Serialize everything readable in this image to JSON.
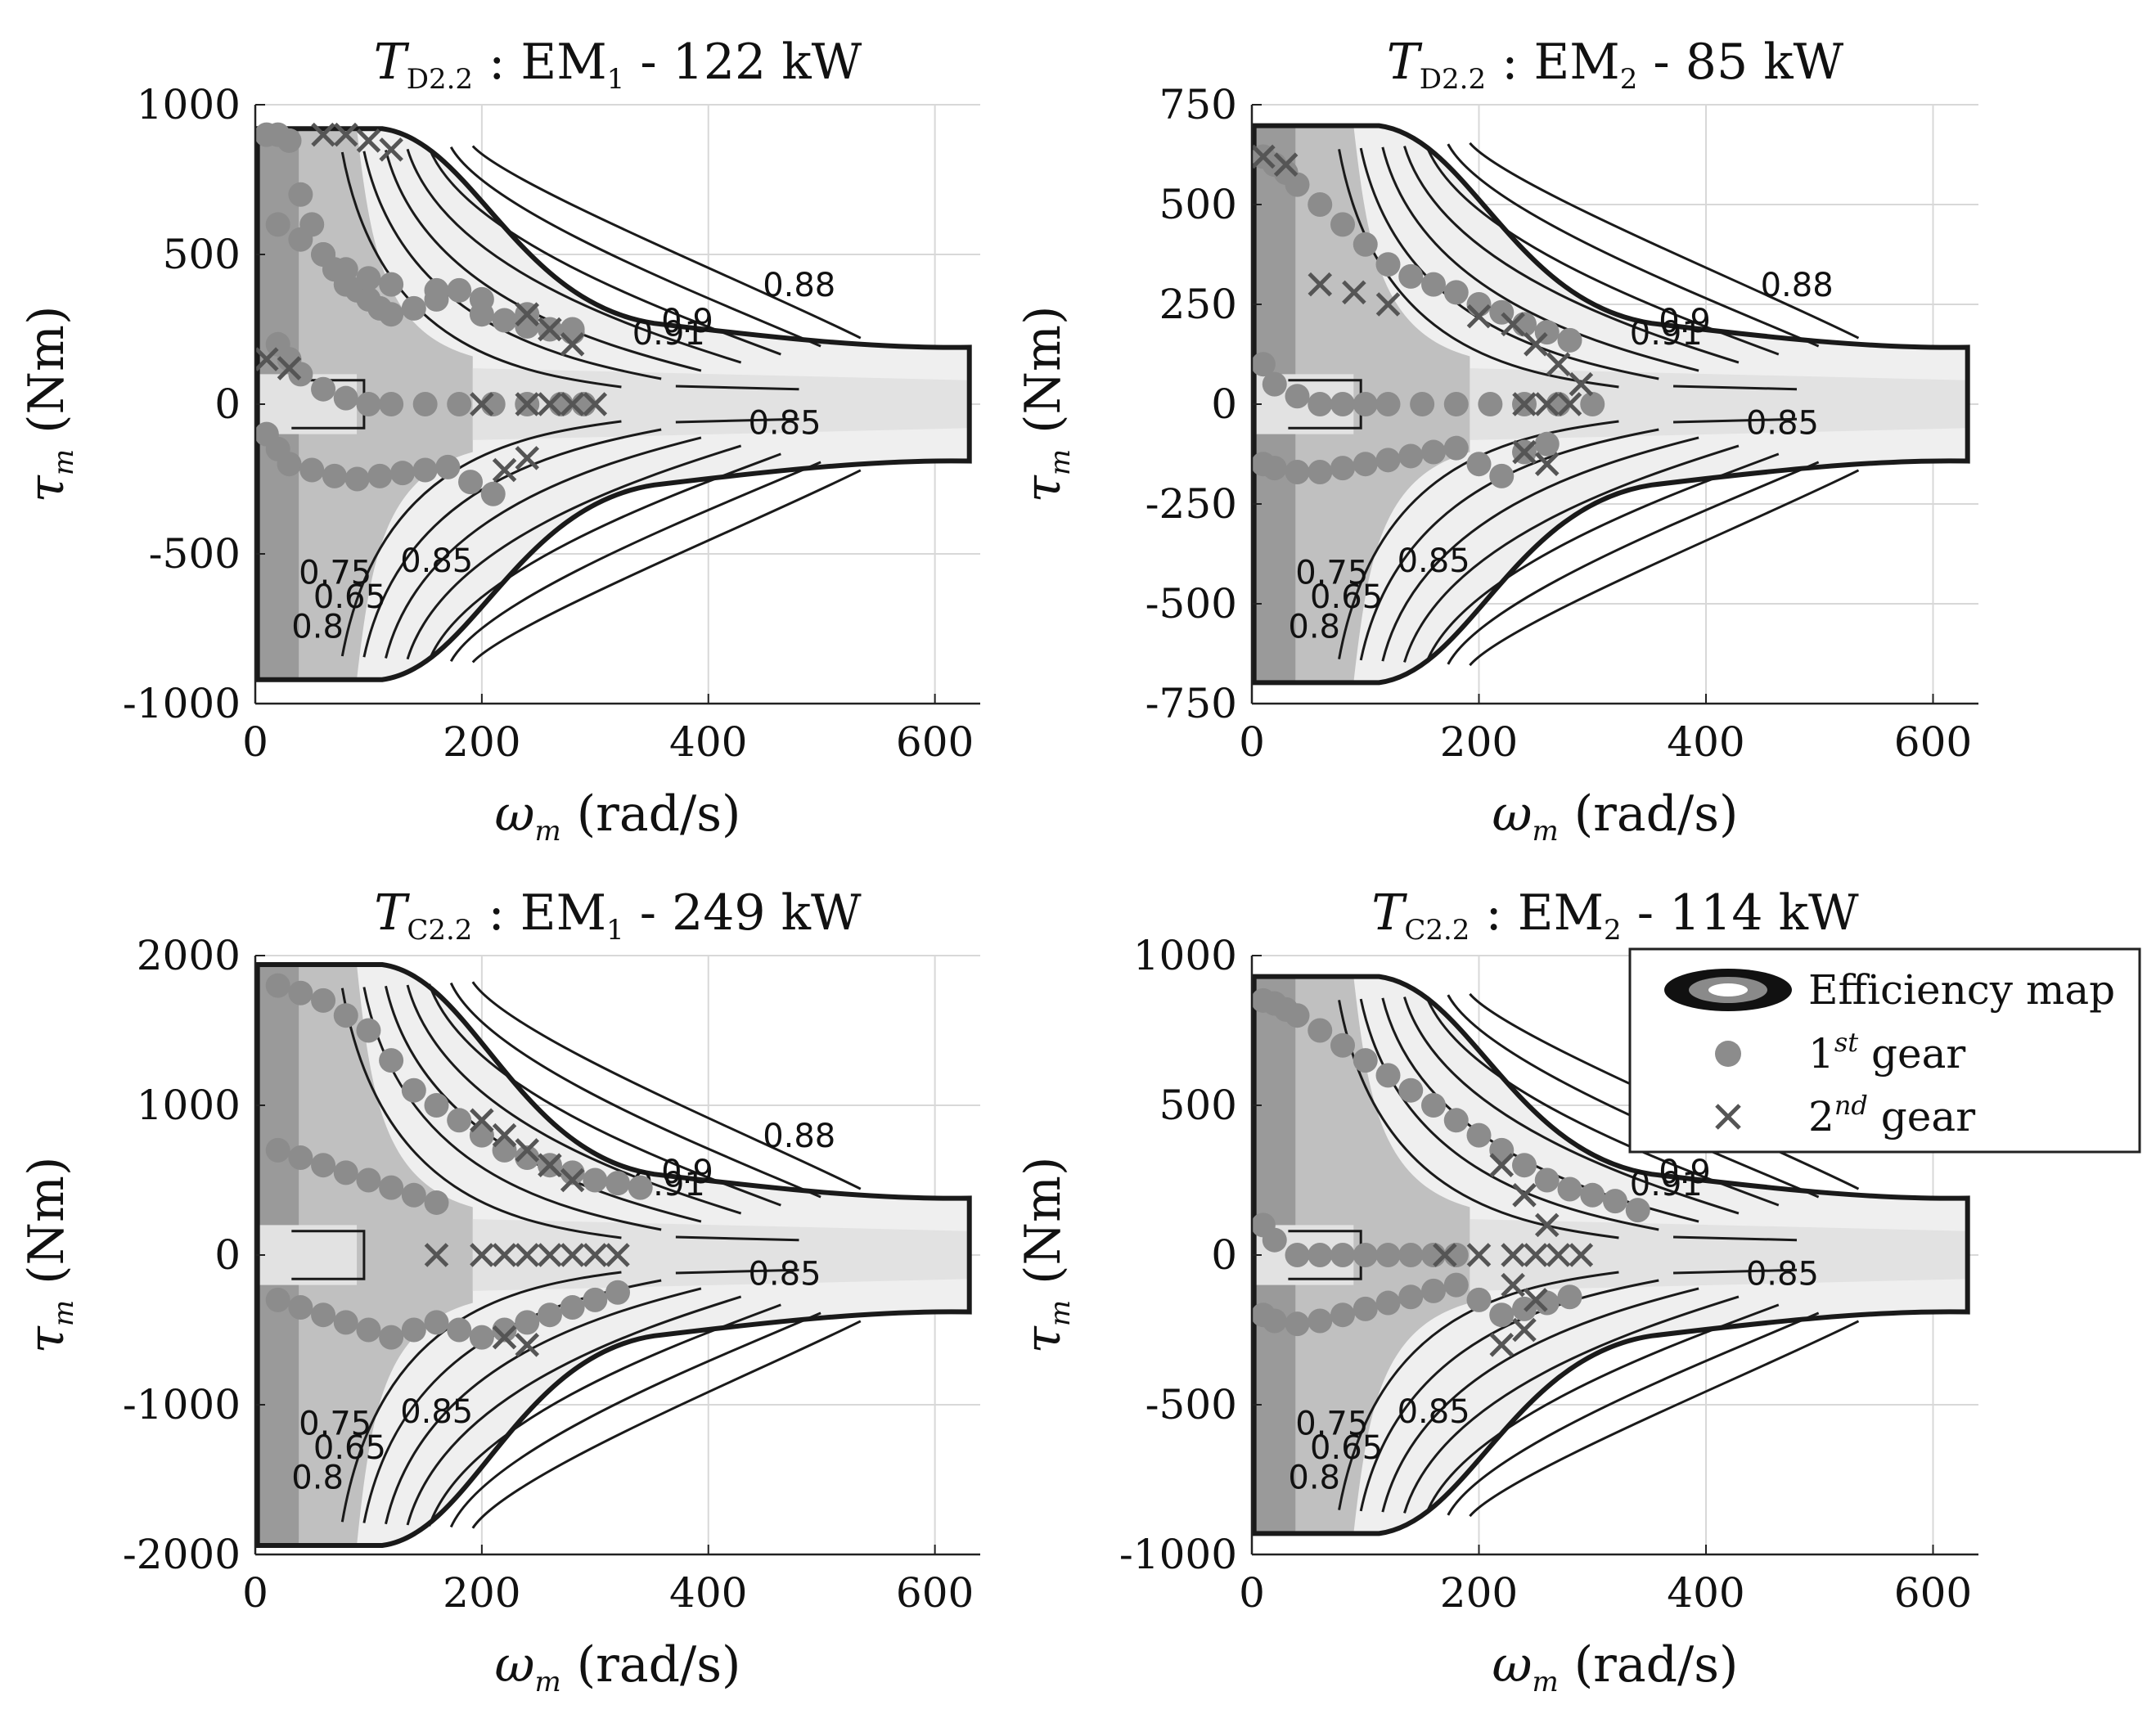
{
  "chart_data": [
    {
      "type": "scatter",
      "title": "T_D2.2 : EM_1 - 122 kW",
      "title_parts": {
        "symbol": "T",
        "sub": "D2.2",
        "machine": "EM",
        "machine_sub": "1",
        "rest": " - 122 kW"
      },
      "xlabel": {
        "symbol": "ω",
        "sub": "m",
        "unit": "(rad/s)"
      },
      "ylabel": {
        "symbol": "τ",
        "sub": "m",
        "unit": "(Nm)"
      },
      "xlim": [
        0,
        640
      ],
      "ylim": [
        -1000,
        1000
      ],
      "xticks": [
        "0",
        "200",
        "400",
        "600"
      ],
      "yticks": [
        "1000",
        "500",
        "0",
        "-500",
        "-1000"
      ],
      "contour_labels": [
        "0.88",
        "0.85",
        "0.9",
        "0.91",
        "0.8",
        "0.85",
        "0.75",
        "0.65"
      ],
      "series": [
        {
          "name": "1st gear",
          "marker": "circle",
          "color": "#8c8c8c",
          "x": [
            10,
            20,
            30,
            40,
            50,
            60,
            70,
            80,
            90,
            100,
            110,
            120,
            140,
            160,
            180,
            200,
            220,
            240,
            260,
            280,
            20,
            30,
            40,
            60,
            80,
            100,
            120,
            150,
            180,
            210,
            240,
            270,
            290,
            10,
            20,
            30,
            50,
            70,
            90,
            110,
            130,
            150,
            170,
            190,
            210,
            20,
            40,
            60,
            80,
            100,
            120,
            160,
            200,
            240,
            280
          ],
          "y": [
            900,
            900,
            880,
            700,
            600,
            500,
            450,
            400,
            380,
            350,
            320,
            300,
            320,
            350,
            380,
            300,
            280,
            260,
            250,
            240,
            200,
            150,
            100,
            50,
            20,
            0,
            0,
            0,
            0,
            0,
            0,
            0,
            0,
            -100,
            -150,
            -200,
            -220,
            -240,
            -250,
            -240,
            -230,
            -220,
            -210,
            -260,
            -300,
            600,
            550,
            500,
            450,
            420,
            400,
            380,
            350,
            300,
            250
          ]
        },
        {
          "name": "2nd gear",
          "marker": "x",
          "color": "#555555",
          "x": [
            10,
            30,
            60,
            80,
            100,
            120,
            200,
            240,
            260,
            280,
            300,
            240,
            260,
            280,
            220,
            240
          ],
          "y": [
            150,
            120,
            900,
            900,
            880,
            850,
            0,
            0,
            0,
            0,
            0,
            300,
            250,
            200,
            -220,
            -180
          ]
        }
      ]
    },
    {
      "type": "scatter",
      "title": "T_D2.2 : EM_2 - 85 kW",
      "title_parts": {
        "symbol": "T",
        "sub": "D2.2",
        "machine": "EM",
        "machine_sub": "2",
        "rest": " - 85 kW"
      },
      "xlabel": {
        "symbol": "ω",
        "sub": "m",
        "unit": "(rad/s)"
      },
      "ylabel": {
        "symbol": "τ",
        "sub": "m",
        "unit": "(Nm)"
      },
      "xlim": [
        0,
        640
      ],
      "ylim": [
        -750,
        750
      ],
      "xticks": [
        "0",
        "200",
        "400",
        "600"
      ],
      "yticks": [
        "750",
        "500",
        "250",
        "0",
        "-250",
        "-500",
        "-750"
      ],
      "contour_labels": [
        "0.88",
        "0.85",
        "0.9",
        "0.91",
        "0.8",
        "0.85",
        "0.75",
        "0.65"
      ],
      "series": [
        {
          "name": "1st gear",
          "marker": "circle",
          "color": "#8c8c8c",
          "x": [
            10,
            20,
            30,
            40,
            60,
            80,
            100,
            120,
            140,
            160,
            180,
            200,
            220,
            240,
            260,
            280,
            10,
            20,
            40,
            60,
            80,
            100,
            120,
            150,
            180,
            210,
            240,
            270,
            300,
            10,
            20,
            40,
            60,
            80,
            100,
            120,
            140,
            160,
            180,
            200,
            220,
            240,
            260
          ],
          "y": [
            620,
            600,
            580,
            550,
            500,
            450,
            400,
            350,
            320,
            300,
            280,
            250,
            230,
            200,
            180,
            160,
            100,
            50,
            20,
            0,
            0,
            0,
            0,
            0,
            0,
            0,
            0,
            0,
            0,
            -150,
            -160,
            -170,
            -170,
            -160,
            -150,
            -140,
            -130,
            -120,
            -110,
            -150,
            -180,
            -120,
            -100
          ]
        },
        {
          "name": "2nd gear",
          "marker": "x",
          "color": "#555555",
          "x": [
            10,
            30,
            60,
            90,
            120,
            200,
            230,
            250,
            270,
            290,
            240,
            260,
            280,
            240,
            260
          ],
          "y": [
            620,
            600,
            300,
            280,
            250,
            220,
            200,
            150,
            100,
            50,
            0,
            0,
            0,
            -120,
            -150
          ]
        }
      ]
    },
    {
      "type": "scatter",
      "title": "T_C2.2 : EM_1 - 249 kW",
      "title_parts": {
        "symbol": "T",
        "sub": "C2.2",
        "machine": "EM",
        "machine_sub": "1",
        "rest": " - 249 kW"
      },
      "xlabel": {
        "symbol": "ω",
        "sub": "m",
        "unit": "(rad/s)"
      },
      "ylabel": {
        "symbol": "τ",
        "sub": "m",
        "unit": "(Nm)"
      },
      "xlim": [
        0,
        640
      ],
      "ylim": [
        -2000,
        2000
      ],
      "xticks": [
        "0",
        "200",
        "400",
        "600"
      ],
      "yticks": [
        "2000",
        "1000",
        "0",
        "-1000",
        "-2000"
      ],
      "contour_labels": [
        "0.88",
        "0.85",
        "0.9",
        "0.91",
        "0.8",
        "0.85",
        "0.75",
        "0.65"
      ],
      "series": [
        {
          "name": "1st gear",
          "marker": "circle",
          "color": "#8c8c8c",
          "x": [
            20,
            40,
            60,
            80,
            100,
            120,
            140,
            160,
            180,
            200,
            220,
            240,
            260,
            280,
            300,
            320,
            340,
            20,
            40,
            60,
            80,
            100,
            120,
            140,
            160,
            20,
            40,
            60,
            80,
            100,
            120,
            140,
            160,
            180,
            200,
            220,
            240,
            260,
            280,
            300,
            320
          ],
          "y": [
            1800,
            1750,
            1700,
            1600,
            1500,
            1300,
            1100,
            1000,
            900,
            800,
            700,
            650,
            600,
            550,
            500,
            480,
            450,
            700,
            650,
            600,
            550,
            500,
            450,
            400,
            350,
            -300,
            -350,
            -400,
            -450,
            -500,
            -550,
            -500,
            -450,
            -500,
            -550,
            -500,
            -450,
            -400,
            -350,
            -300,
            -250
          ]
        },
        {
          "name": "2nd gear",
          "marker": "x",
          "color": "#555555",
          "x": [
            160,
            200,
            220,
            240,
            260,
            280,
            300,
            320,
            200,
            220,
            240,
            260,
            280,
            220,
            240
          ],
          "y": [
            0,
            0,
            0,
            0,
            0,
            0,
            0,
            0,
            900,
            800,
            700,
            600,
            500,
            -550,
            -600
          ]
        }
      ]
    },
    {
      "type": "scatter",
      "title": "T_C2.2 : EM_2 - 114 kW",
      "title_parts": {
        "symbol": "T",
        "sub": "C2.2",
        "machine": "EM",
        "machine_sub": "2",
        "rest": " - 114 kW"
      },
      "xlabel": {
        "symbol": "ω",
        "sub": "m",
        "unit": "(rad/s)"
      },
      "ylabel": {
        "symbol": "τ",
        "sub": "m",
        "unit": "(Nm)"
      },
      "xlim": [
        0,
        640
      ],
      "ylim": [
        -1000,
        1000
      ],
      "xticks": [
        "0",
        "200",
        "400",
        "600"
      ],
      "yticks": [
        "1000",
        "500",
        "0",
        "-500",
        "-1000"
      ],
      "contour_labels": [
        "0.88",
        "0.85",
        "0.9",
        "0.91",
        "0.8",
        "0.85",
        "0.75",
        "0.65"
      ],
      "series": [
        {
          "name": "1st gear",
          "marker": "circle",
          "color": "#8c8c8c",
          "x": [
            10,
            20,
            30,
            40,
            60,
            80,
            100,
            120,
            140,
            160,
            180,
            200,
            220,
            240,
            260,
            280,
            300,
            320,
            340,
            10,
            20,
            40,
            60,
            80,
            100,
            120,
            140,
            160,
            180,
            10,
            20,
            40,
            60,
            80,
            100,
            120,
            140,
            160,
            180,
            200,
            220,
            240,
            260,
            280
          ],
          "y": [
            850,
            840,
            820,
            800,
            750,
            700,
            650,
            600,
            550,
            500,
            450,
            400,
            350,
            300,
            250,
            220,
            200,
            180,
            150,
            100,
            50,
            0,
            0,
            0,
            0,
            0,
            0,
            0,
            0,
            -200,
            -220,
            -230,
            -220,
            -200,
            -180,
            -160,
            -140,
            -120,
            -100,
            -150,
            -200,
            -180,
            -160,
            -140
          ]
        },
        {
          "name": "2nd gear",
          "marker": "x",
          "color": "#555555",
          "x": [
            170,
            200,
            230,
            250,
            270,
            290,
            220,
            240,
            260,
            230,
            250,
            220,
            240
          ],
          "y": [
            0,
            0,
            0,
            0,
            0,
            0,
            300,
            200,
            100,
            -100,
            -150,
            -300,
            -250
          ]
        }
      ]
    }
  ],
  "legend": {
    "placement": "top-right of bottom-right panel",
    "entries": [
      {
        "label": "Efficiency map",
        "icon": "efficiency-map-icon"
      },
      {
        "label": "1",
        "sup": "st",
        "suffix": " gear",
        "icon": "circle-marker-icon"
      },
      {
        "label": "2",
        "sup": "nd",
        "suffix": " gear",
        "icon": "x-marker-icon"
      }
    ]
  },
  "colors": {
    "map_dark": "#9a9a9a",
    "map_mid": "#c0c0c0",
    "map_light": "#e2e2e2",
    "map_lightest": "#efefef",
    "contour": "#1a1a1a",
    "grid": "#d8d8d8",
    "circle_marker": "#8c8c8c",
    "x_marker": "#555555"
  },
  "grid": true
}
